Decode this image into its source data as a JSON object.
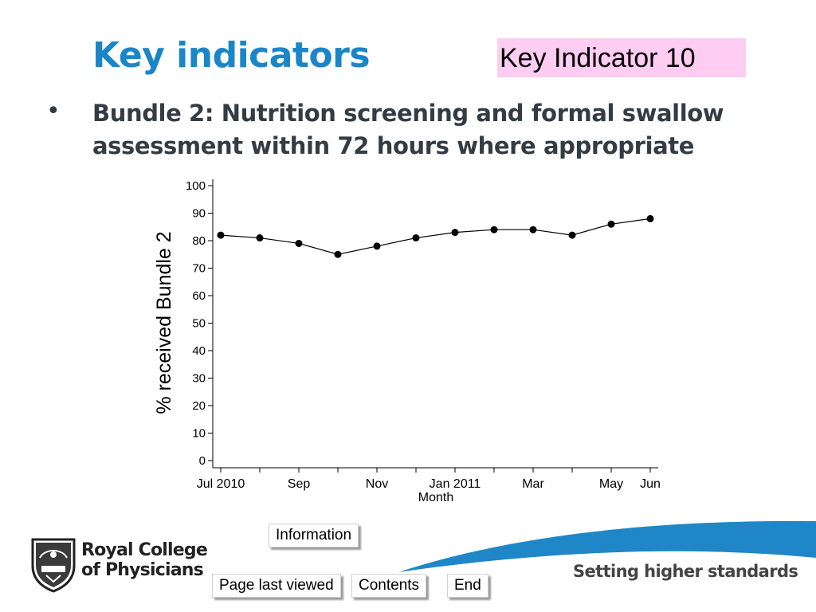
{
  "slide": {
    "title": "Key indicators",
    "badge": "Key Indicator 10",
    "bullet_symbol": "•",
    "bullet_line1": "Bundle 2: Nutrition screening and formal swallow",
    "bullet_line2": "assessment within 72 hours where appropriate"
  },
  "chart_data": {
    "type": "line",
    "x": [
      "Jul 2010",
      "Aug 2010",
      "Sep 2010",
      "Oct 2010",
      "Nov 2010",
      "Dec 2010",
      "Jan 2011",
      "Feb 2011",
      "Mar 2011",
      "Apr 2011",
      "May 2011",
      "Jun 2011"
    ],
    "values": [
      82,
      81,
      79,
      75,
      78,
      81,
      83,
      84,
      84,
      82,
      86,
      88
    ],
    "xtick_labels": [
      {
        "index": 0,
        "label": "Jul 2010"
      },
      {
        "index": 2,
        "label": "Sep"
      },
      {
        "index": 4,
        "label": "Nov"
      },
      {
        "index": 6,
        "label": "Jan 2011"
      },
      {
        "index": 8,
        "label": "Mar"
      },
      {
        "index": 10,
        "label": "May"
      },
      {
        "index": 11,
        "label": "Jun"
      }
    ],
    "yticks": [
      0,
      10,
      20,
      30,
      40,
      50,
      60,
      70,
      80,
      90,
      100
    ],
    "xlabel": "Month",
    "ylabel": "% received Bundle 2",
    "ylim": [
      0,
      100
    ],
    "grid": false
  },
  "nav": {
    "information": "Information",
    "page_last_viewed": "Page last viewed",
    "contents": "Contents",
    "end": "End"
  },
  "footer": {
    "tagline": "Setting higher standards",
    "logo_line1": "Royal College",
    "logo_line2": "of Physicians"
  },
  "colors": {
    "title": "#1a86c8",
    "badge_bg": "#ffccf2",
    "swoosh": "#1f87c7",
    "text": "#333c44"
  }
}
